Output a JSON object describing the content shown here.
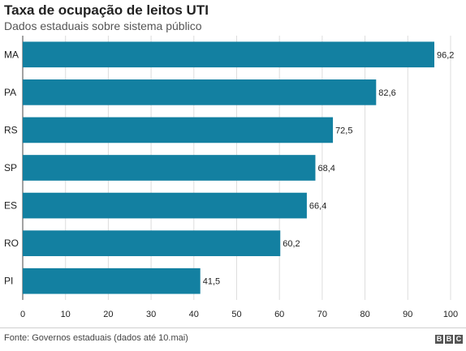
{
  "chart_data": {
    "type": "bar",
    "orientation": "horizontal",
    "title": "Taxa de ocupação de leitos UTI",
    "subtitle": "Dados estaduais sobre sistema público",
    "categories": [
      "MA",
      "PA",
      "RS",
      "SP",
      "ES",
      "RO",
      "PI"
    ],
    "values": [
      96.2,
      82.6,
      72.5,
      68.4,
      66.4,
      60.2,
      41.5
    ],
    "value_labels": [
      "96,2",
      "82,6",
      "72,5",
      "68,4",
      "66,4",
      "60,2",
      "41,5"
    ],
    "xlim": [
      0,
      100
    ],
    "xticks": [
      0,
      10,
      20,
      30,
      40,
      50,
      60,
      70,
      80,
      90,
      100
    ],
    "grid": true,
    "bar_color": "#1380a1"
  },
  "footer": {
    "source": "Fonte: Governos estaduais (dados até 10.mai)",
    "logo_letters": [
      "B",
      "B",
      "C"
    ]
  }
}
